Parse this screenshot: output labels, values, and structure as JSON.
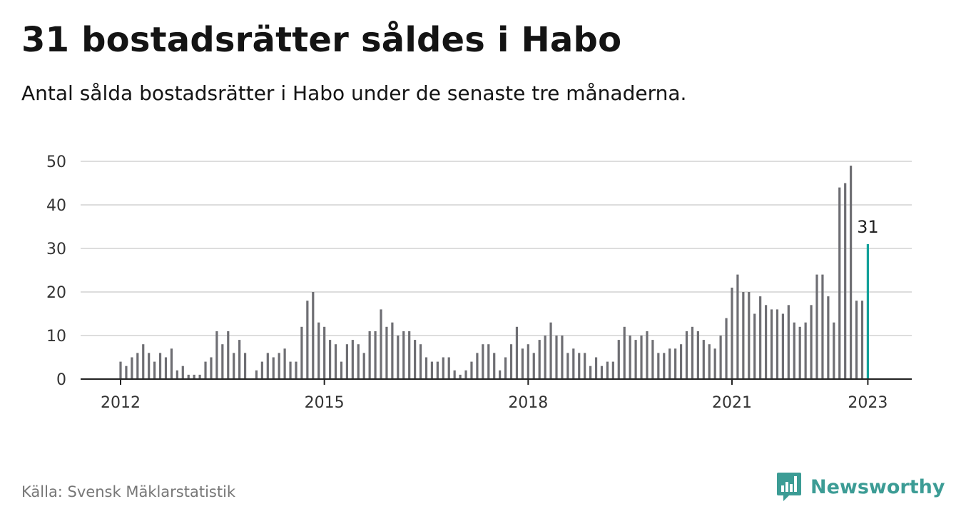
{
  "header": {
    "title": "31 bostadsrätter såldes i Habo",
    "subtitle": "Antal sålda bostadsrätter i Habo under de senaste tre månaderna."
  },
  "footer": {
    "source": "Källa: Svensk Mäklarstatistik",
    "brand": "Newsworthy",
    "brand_icon": "bar-chart-speech-bubble-icon"
  },
  "colors": {
    "bar": "#6e6e73",
    "highlight": "#12a09a",
    "grid": "#dddddd",
    "axis": "#222222",
    "brand": "#3c9c95"
  },
  "chart_data": {
    "type": "bar",
    "x_start": "2012-01",
    "x_end": "2023-01",
    "values": [
      4,
      3,
      5,
      6,
      8,
      6,
      4,
      6,
      5,
      7,
      2,
      3,
      1,
      1,
      1,
      4,
      5,
      11,
      8,
      11,
      6,
      9,
      6,
      null,
      2,
      4,
      6,
      5,
      6,
      7,
      4,
      4,
      12,
      18,
      20,
      13,
      12,
      9,
      8,
      4,
      8,
      9,
      8,
      6,
      11,
      11,
      16,
      12,
      13,
      10,
      11,
      11,
      9,
      8,
      5,
      4,
      4,
      5,
      5,
      2,
      1,
      2,
      4,
      6,
      8,
      8,
      6,
      2,
      5,
      8,
      12,
      7,
      8,
      6,
      9,
      10,
      13,
      10,
      10,
      6,
      7,
      6,
      6,
      3,
      5,
      3,
      4,
      4,
      9,
      12,
      10,
      9,
      10,
      11,
      9,
      6,
      6,
      7,
      7,
      8,
      11,
      12,
      11,
      9,
      8,
      7,
      10,
      14,
      21,
      24,
      20,
      20,
      15,
      19,
      17,
      16,
      16,
      15,
      17,
      13,
      12,
      13,
      17,
      24,
      24,
      19,
      13,
      44,
      45,
      49,
      18,
      18,
      31
    ],
    "highlight": {
      "label": "31",
      "value": 31
    },
    "x_ticks": [
      "2012",
      "2015",
      "2018",
      "2021",
      "2023"
    ],
    "y_ticks": [
      "0",
      "10",
      "20",
      "30",
      "40",
      "50"
    ],
    "ylim": [
      0,
      50
    ],
    "grid": true,
    "xlabel": "",
    "ylabel": ""
  }
}
